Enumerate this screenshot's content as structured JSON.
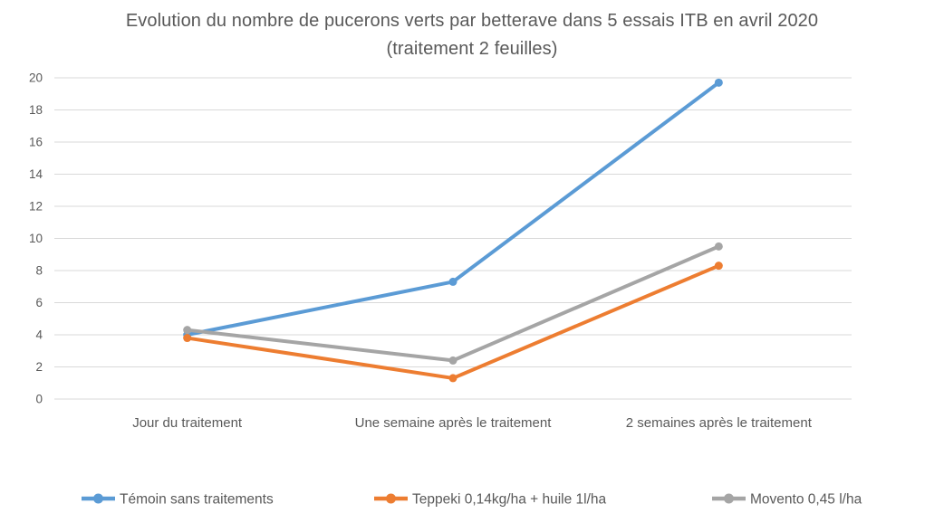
{
  "chart_data": {
    "type": "line",
    "title": "Evolution du nombre de pucerons verts par betterave dans 5 essais ITB en avril 2020 (traitement 2 feuilles)",
    "categories": [
      "Jour du traitement",
      "Une semaine après le traitement",
      "2 semaines après le traitement"
    ],
    "series": [
      {
        "name": "Témoin sans traitements",
        "color": "#5B9BD5",
        "values": [
          4.0,
          7.3,
          19.7
        ]
      },
      {
        "name": "Teppeki 0,14kg/ha + huile 1l/ha",
        "color": "#ED7D31",
        "values": [
          3.8,
          1.3,
          8.3
        ]
      },
      {
        "name": "Movento 0,45 l/ha",
        "color": "#A5A5A5",
        "values": [
          4.3,
          2.4,
          9.5
        ]
      }
    ],
    "xlabel": "",
    "ylabel": "",
    "ylim": [
      0,
      20
    ],
    "ytick_step": 2,
    "grid": true,
    "legend_position": "bottom",
    "grid_color": "#D9D9D9",
    "axis_text_color": "#595959",
    "title_color": "#595959"
  }
}
